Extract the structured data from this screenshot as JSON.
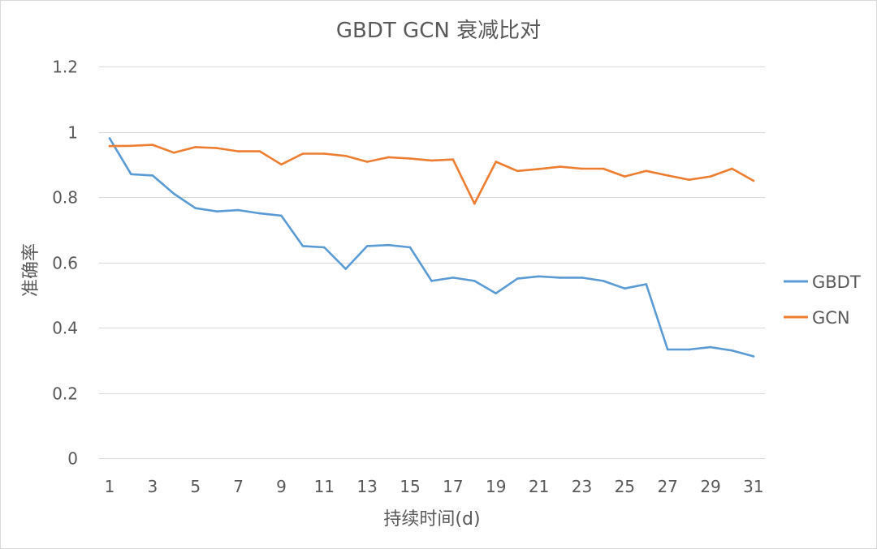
{
  "chart_data": {
    "type": "line",
    "title": "GBDT GCN 衰减比对",
    "xlabel": "持续时间(d)",
    "ylabel": "准确率",
    "x": [
      1,
      2,
      3,
      4,
      5,
      6,
      7,
      8,
      9,
      10,
      11,
      12,
      13,
      14,
      15,
      16,
      17,
      18,
      19,
      20,
      21,
      22,
      23,
      24,
      25,
      26,
      27,
      28,
      29,
      30,
      31
    ],
    "x_tick_labels": [
      "1",
      "3",
      "5",
      "7",
      "9",
      "11",
      "13",
      "15",
      "17",
      "19",
      "21",
      "23",
      "25",
      "27",
      "29",
      "31"
    ],
    "y_tick_labels": [
      "0",
      "0.2",
      "0.4",
      "0.6",
      "0.8",
      "1",
      "1.2"
    ],
    "ylim": [
      0,
      1.2
    ],
    "grid": true,
    "legend_position": "right",
    "series": [
      {
        "name": "GBDT",
        "color": "#5b9bd5",
        "values": [
          0.98,
          0.87,
          0.866,
          0.81,
          0.766,
          0.756,
          0.76,
          0.75,
          0.743,
          0.65,
          0.646,
          0.58,
          0.65,
          0.653,
          0.646,
          0.543,
          0.553,
          0.543,
          0.505,
          0.55,
          0.557,
          0.553,
          0.553,
          0.543,
          0.52,
          0.533,
          0.333,
          0.333,
          0.34,
          0.33,
          0.312
        ]
      },
      {
        "name": "GCN",
        "color": "#ed7d31",
        "values": [
          0.956,
          0.957,
          0.96,
          0.936,
          0.953,
          0.95,
          0.94,
          0.94,
          0.9,
          0.933,
          0.933,
          0.926,
          0.908,
          0.922,
          0.918,
          0.912,
          0.915,
          0.78,
          0.908,
          0.88,
          0.886,
          0.893,
          0.887,
          0.887,
          0.863,
          0.88,
          0.866,
          0.853,
          0.863,
          0.887,
          0.85
        ]
      }
    ]
  }
}
